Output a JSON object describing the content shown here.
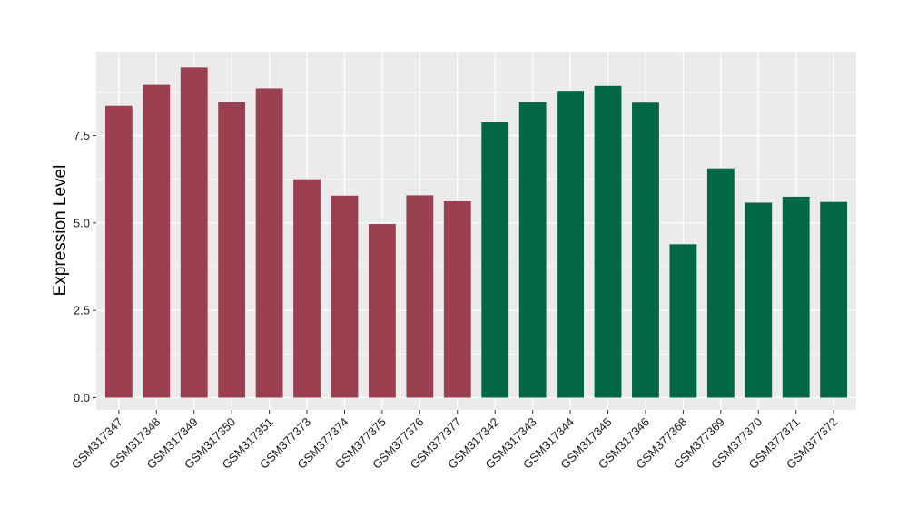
{
  "chart_data": {
    "type": "bar",
    "title": "",
    "xlabel": "",
    "ylabel": "Expression Level",
    "ylim": [
      -0.35,
      9.9
    ],
    "yticks": [
      0.0,
      2.5,
      5.0,
      7.5
    ],
    "ytick_labels": [
      "0.0",
      "2.5",
      "5.0",
      "7.5"
    ],
    "grid": true,
    "legend": "none",
    "categories": [
      "GSM317347",
      "GSM317348",
      "GSM317349",
      "GSM317350",
      "GSM317351",
      "GSM377373",
      "GSM377374",
      "GSM377375",
      "GSM377376",
      "GSM377377",
      "GSM317342",
      "GSM317343",
      "GSM317344",
      "GSM317345",
      "GSM317346",
      "GSM377368",
      "GSM377369",
      "GSM377370",
      "GSM377371",
      "GSM377372"
    ],
    "values": [
      8.35,
      8.95,
      9.45,
      8.45,
      8.85,
      6.25,
      5.78,
      4.97,
      5.79,
      5.62,
      7.88,
      8.45,
      8.78,
      8.92,
      8.44,
      4.39,
      6.56,
      5.58,
      5.75,
      5.6
    ],
    "colors": [
      "#9a4050",
      "#9a4050",
      "#9a4050",
      "#9a4050",
      "#9a4050",
      "#9a4050",
      "#9a4050",
      "#9a4050",
      "#9a4050",
      "#9a4050",
      "#026745",
      "#026745",
      "#026745",
      "#026745",
      "#026745",
      "#026745",
      "#026745",
      "#026745",
      "#026745",
      "#026745"
    ],
    "panel_background": "#ebebeb",
    "gridline_color": "#ffffff"
  }
}
